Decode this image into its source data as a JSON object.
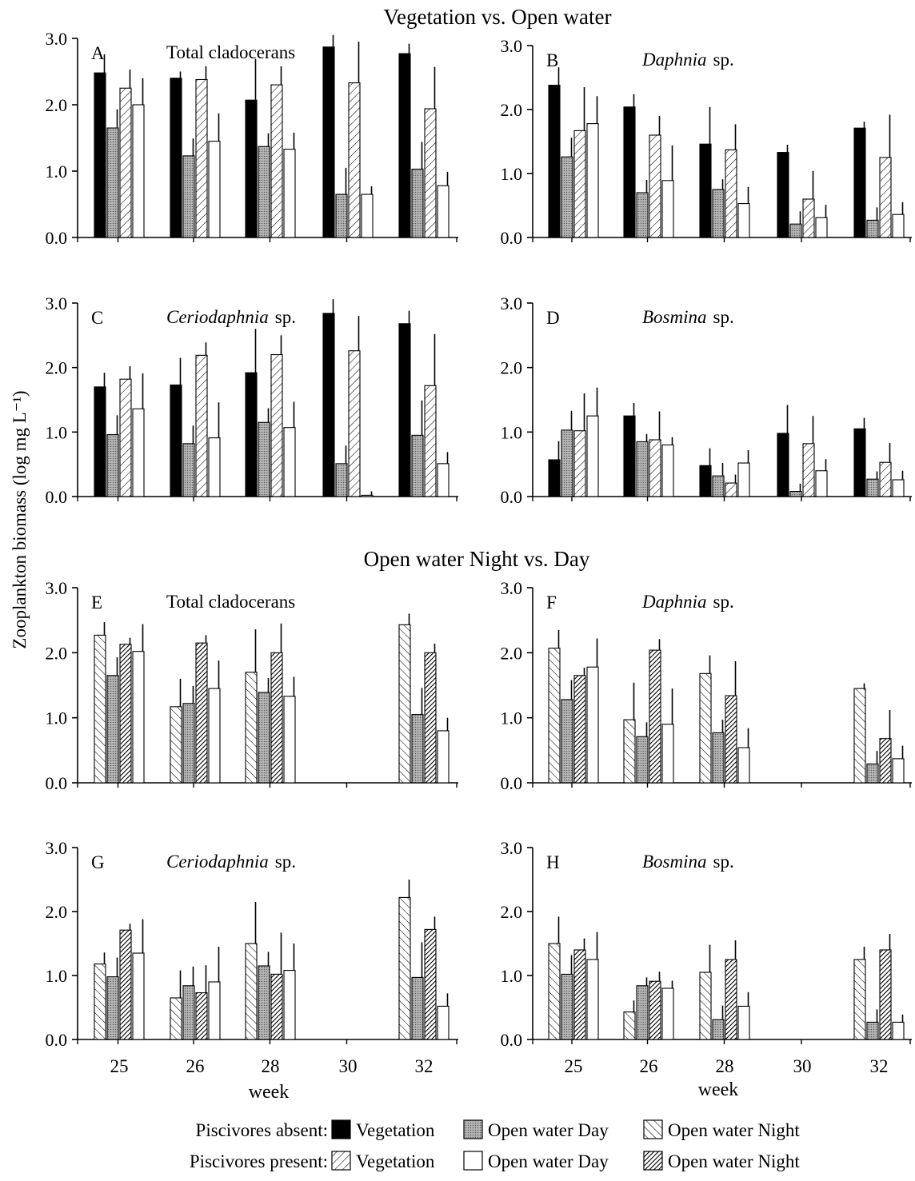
{
  "headings": {
    "top": "Vegetation vs. Open water",
    "middle": "Open water Night vs. Day"
  },
  "y_axis_label": "Zooplankton biomass (log mg L⁻¹)",
  "x_axis_label": "week",
  "legend": {
    "rows": [
      {
        "label": "Piscivores absent:",
        "items": [
          {
            "key": "abs_veg",
            "label": "Vegetation"
          },
          {
            "key": "abs_day",
            "label": "Open water Day"
          },
          {
            "key": "abs_night",
            "label": "Open water Night"
          }
        ]
      },
      {
        "label": "Piscivores present:",
        "items": [
          {
            "key": "pre_veg",
            "label": "Vegetation"
          },
          {
            "key": "pre_day",
            "label": "Open water Day"
          },
          {
            "key": "pre_night",
            "label": "Open water Night"
          }
        ]
      }
    ]
  },
  "chart_data": [
    {
      "type": "bar",
      "panel": "A",
      "title": "Total cladocerans",
      "italic": false,
      "categories": [
        "25",
        "26",
        "28",
        "30",
        "32"
      ],
      "ylim": [
        0,
        3
      ],
      "yticks": [
        "0.0",
        "1.0",
        "2.0",
        "3.0"
      ],
      "series": [
        {
          "key": "abs_veg",
          "values": [
            2.48,
            2.4,
            2.07,
            2.87,
            2.77
          ],
          "err": [
            0.28,
            0.1,
            0.62,
            0.18,
            0.15
          ]
        },
        {
          "key": "abs_day",
          "values": [
            1.65,
            1.23,
            1.37,
            0.65,
            1.03
          ],
          "err": [
            0.28,
            0.26,
            0.2,
            0.4,
            0.41
          ]
        },
        {
          "key": "pre_veg",
          "values": [
            2.25,
            2.38,
            2.3,
            2.33,
            1.94
          ],
          "err": [
            0.28,
            0.2,
            0.28,
            0.62,
            0.63
          ]
        },
        {
          "key": "pre_day",
          "values": [
            2.0,
            1.45,
            1.33,
            0.65,
            0.78
          ],
          "err": [
            0.4,
            0.42,
            0.25,
            0.12,
            0.21
          ]
        }
      ]
    },
    {
      "type": "bar",
      "panel": "B",
      "title": "Daphnia",
      "title_suffix": "sp.",
      "italic": true,
      "categories": [
        "25",
        "26",
        "28",
        "30",
        "32"
      ],
      "ylim": [
        0,
        3
      ],
      "yticks": [
        "0.0",
        "1.0",
        "2.0",
        "3.0"
      ],
      "series": [
        {
          "key": "abs_veg",
          "values": [
            2.38,
            2.04,
            1.46,
            1.33,
            1.71
          ],
          "err": [
            0.28,
            0.2,
            0.58,
            0.12,
            0.1
          ]
        },
        {
          "key": "abs_day",
          "values": [
            1.26,
            0.7,
            0.75,
            0.21,
            0.27
          ],
          "err": [
            0.3,
            0.2,
            0.16,
            0.2,
            0.2
          ]
        },
        {
          "key": "pre_veg",
          "values": [
            1.67,
            1.6,
            1.37,
            0.6,
            1.25
          ],
          "err": [
            0.68,
            0.3,
            0.4,
            0.44,
            0.67
          ]
        },
        {
          "key": "pre_day",
          "values": [
            1.78,
            0.89,
            0.53,
            0.31,
            0.36
          ],
          "err": [
            0.43,
            0.55,
            0.26,
            0.2,
            0.19
          ]
        }
      ]
    },
    {
      "type": "bar",
      "panel": "C",
      "title": "Ceriodaphnia",
      "title_suffix": "sp.",
      "italic": true,
      "categories": [
        "25",
        "26",
        "28",
        "30",
        "32"
      ],
      "ylim": [
        0,
        3
      ],
      "yticks": [
        "0.0",
        "1.0",
        "2.0",
        "3.0"
      ],
      "series": [
        {
          "key": "abs_veg",
          "values": [
            1.7,
            1.73,
            1.92,
            2.84,
            2.68
          ],
          "err": [
            0.22,
            0.42,
            0.68,
            0.22,
            0.2
          ]
        },
        {
          "key": "abs_day",
          "values": [
            0.96,
            0.82,
            1.15,
            0.51,
            0.95
          ],
          "err": [
            0.3,
            0.28,
            0.22,
            0.28,
            0.54
          ]
        },
        {
          "key": "pre_veg",
          "values": [
            1.82,
            2.19,
            2.2,
            2.26,
            1.72
          ],
          "err": [
            0.2,
            0.2,
            0.3,
            0.54,
            0.8
          ]
        },
        {
          "key": "pre_day",
          "values": [
            1.36,
            0.91,
            1.07,
            0.02,
            0.51
          ],
          "err": [
            0.55,
            0.55,
            0.4,
            0.06,
            0.18
          ]
        }
      ]
    },
    {
      "type": "bar",
      "panel": "D",
      "title": "Bosmina",
      "title_suffix": "sp.",
      "italic": true,
      "categories": [
        "25",
        "26",
        "28",
        "30",
        "32"
      ],
      "ylim": [
        0,
        3
      ],
      "yticks": [
        "0.0",
        "1.0",
        "2.0",
        "3.0"
      ],
      "series": [
        {
          "key": "abs_veg",
          "values": [
            0.57,
            1.25,
            0.48,
            0.98,
            1.05
          ],
          "err": [
            0.29,
            0.2,
            0.27,
            0.44,
            0.17
          ]
        },
        {
          "key": "abs_day",
          "values": [
            1.03,
            0.85,
            0.32,
            0.08,
            0.27
          ],
          "err": [
            0.3,
            0.12,
            0.2,
            0.12,
            0.12
          ]
        },
        {
          "key": "pre_veg",
          "values": [
            1.02,
            0.88,
            0.21,
            0.82,
            0.53
          ],
          "err": [
            0.58,
            0.44,
            0.13,
            0.43,
            0.3
          ]
        },
        {
          "key": "pre_day",
          "values": [
            1.25,
            0.8,
            0.52,
            0.4,
            0.26
          ],
          "err": [
            0.44,
            0.12,
            0.2,
            0.18,
            0.14
          ]
        }
      ]
    },
    {
      "type": "bar",
      "panel": "E",
      "title": "Total cladocerans",
      "italic": false,
      "categories": [
        "25",
        "26",
        "28",
        "30",
        "32"
      ],
      "ylim": [
        0,
        3
      ],
      "yticks": [
        "0.0",
        "1.0",
        "2.0",
        "3.0"
      ],
      "series": [
        {
          "key": "abs_night",
          "values": [
            2.27,
            1.17,
            1.7,
            null,
            2.43
          ],
          "err": [
            0.2,
            0.43,
            0.66,
            null,
            0.17
          ]
        },
        {
          "key": "abs_day",
          "values": [
            1.65,
            1.22,
            1.39,
            null,
            1.05
          ],
          "err": [
            0.28,
            0.27,
            0.22,
            null,
            0.41
          ]
        },
        {
          "key": "pre_night",
          "values": [
            2.13,
            2.15,
            2.0,
            null,
            2.0
          ],
          "err": [
            0.1,
            0.12,
            0.45,
            null,
            0.14
          ]
        },
        {
          "key": "pre_day",
          "values": [
            2.02,
            1.45,
            1.33,
            null,
            0.8
          ],
          "err": [
            0.42,
            0.43,
            0.3,
            null,
            0.2
          ]
        }
      ]
    },
    {
      "type": "bar",
      "panel": "F",
      "title": "Daphnia",
      "title_suffix": "sp.",
      "italic": true,
      "categories": [
        "25",
        "26",
        "28",
        "30",
        "32"
      ],
      "ylim": [
        0,
        3
      ],
      "yticks": [
        "0.0",
        "1.0",
        "2.0",
        "3.0"
      ],
      "series": [
        {
          "key": "abs_night",
          "values": [
            2.07,
            0.97,
            1.68,
            null,
            1.45
          ],
          "err": [
            0.28,
            0.57,
            0.28,
            null,
            0.08
          ]
        },
        {
          "key": "abs_day",
          "values": [
            1.28,
            0.71,
            0.77,
            null,
            0.29
          ],
          "err": [
            0.3,
            0.22,
            0.2,
            null,
            0.2
          ]
        },
        {
          "key": "pre_night",
          "values": [
            1.65,
            2.04,
            1.34,
            null,
            0.68
          ],
          "err": [
            0.12,
            0.17,
            0.53,
            null,
            0.44
          ]
        },
        {
          "key": "pre_day",
          "values": [
            1.78,
            0.9,
            0.54,
            null,
            0.37
          ],
          "err": [
            0.44,
            0.55,
            0.3,
            null,
            0.2
          ]
        }
      ]
    },
    {
      "type": "bar",
      "panel": "G",
      "title": "Ceriodaphnia",
      "title_suffix": "sp.",
      "italic": true,
      "categories": [
        "25",
        "26",
        "28",
        "30",
        "32"
      ],
      "ylim": [
        0,
        3
      ],
      "yticks": [
        "0.0",
        "1.0",
        "2.0",
        "3.0"
      ],
      "series": [
        {
          "key": "abs_night",
          "values": [
            1.18,
            0.65,
            1.5,
            null,
            2.22
          ],
          "err": [
            0.18,
            0.43,
            0.65,
            null,
            0.28
          ]
        },
        {
          "key": "abs_day",
          "values": [
            0.98,
            0.84,
            1.15,
            null,
            0.97
          ],
          "err": [
            0.3,
            0.3,
            0.22,
            null,
            0.55
          ]
        },
        {
          "key": "pre_night",
          "values": [
            1.71,
            0.73,
            1.02,
            null,
            1.72
          ],
          "err": [
            0.1,
            0.43,
            0.65,
            null,
            0.2
          ]
        },
        {
          "key": "pre_day",
          "values": [
            1.35,
            0.9,
            1.08,
            null,
            0.52
          ],
          "err": [
            0.53,
            0.55,
            0.42,
            null,
            0.2
          ]
        }
      ]
    },
    {
      "type": "bar",
      "panel": "H",
      "title": "Bosmina",
      "title_suffix": "sp.",
      "italic": true,
      "categories": [
        "25",
        "26",
        "28",
        "30",
        "32"
      ],
      "ylim": [
        0,
        3
      ],
      "yticks": [
        "0.0",
        "1.0",
        "2.0",
        "3.0"
      ],
      "series": [
        {
          "key": "abs_night",
          "values": [
            1.5,
            0.43,
            1.05,
            null,
            1.25
          ],
          "err": [
            0.42,
            0.18,
            0.43,
            null,
            0.2
          ]
        },
        {
          "key": "abs_day",
          "values": [
            1.02,
            0.84,
            0.31,
            null,
            0.27
          ],
          "err": [
            0.3,
            0.13,
            0.22,
            null,
            0.2
          ]
        },
        {
          "key": "pre_night",
          "values": [
            1.4,
            0.91,
            1.25,
            null,
            1.4
          ],
          "err": [
            0.18,
            0.15,
            0.3,
            null,
            0.25
          ]
        },
        {
          "key": "pre_day",
          "values": [
            1.25,
            0.8,
            0.52,
            null,
            0.27
          ],
          "err": [
            0.43,
            0.12,
            0.22,
            null,
            0.12
          ]
        }
      ]
    }
  ]
}
